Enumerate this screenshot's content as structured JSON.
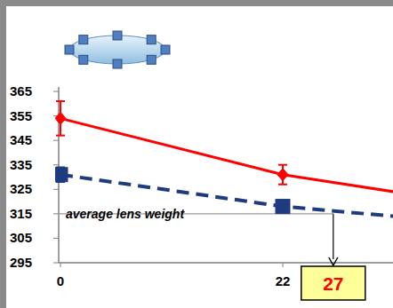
{
  "chart_data": {
    "type": "line",
    "x": [
      0,
      22,
      33
    ],
    "xlim": [
      0,
      33
    ],
    "xticks": [
      0,
      22
    ],
    "ylim": [
      295,
      365
    ],
    "yticks": [
      295,
      305,
      315,
      325,
      335,
      345,
      355,
      365
    ],
    "grid": false,
    "series": [
      {
        "color": "#ff0000",
        "marker": "diamond",
        "line_style": "solid",
        "values": [
          354,
          331,
          324
        ],
        "errors": [
          7,
          4,
          null
        ]
      },
      {
        "color": "#1f3b80",
        "marker": "square",
        "line_style": "dashed",
        "values": [
          331,
          318,
          314
        ],
        "errors": [
          3,
          2,
          null
        ]
      }
    ],
    "reference": {
      "y": 315,
      "label": "average lens weight"
    },
    "annotation_x": 27
  }
}
